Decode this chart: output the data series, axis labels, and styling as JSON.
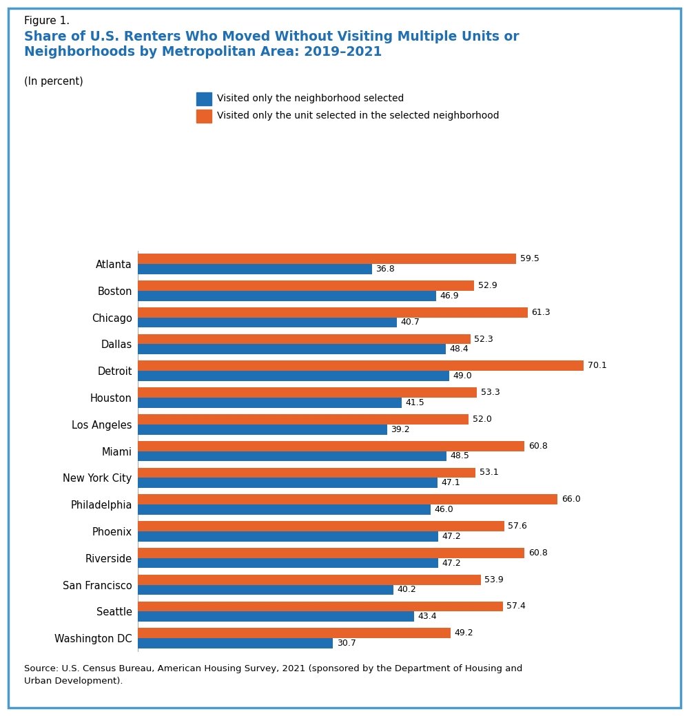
{
  "figure_label": "Figure 1.",
  "title": "Share of U.S. Renters Who Moved Without Visiting Multiple Units or\nNeighborhoods by Metropolitan Area: 2019–2021",
  "subtitle": "(In percent)",
  "source": "Source: U.S. Census Bureau, American Housing Survey, 2021 (sponsored by the Department of Housing and\nUrban Development).",
  "legend": [
    "Visited only the neighborhood selected",
    "Visited only the unit selected in the selected neighborhood"
  ],
  "categories": [
    "Atlanta",
    "Boston",
    "Chicago",
    "Dallas",
    "Detroit",
    "Houston",
    "Los Angeles",
    "Miami",
    "New York City",
    "Philadelphia",
    "Phoenix",
    "Riverside",
    "San Francisco",
    "Seattle",
    "Washington DC"
  ],
  "blue_values": [
    36.8,
    46.9,
    40.7,
    48.4,
    49.0,
    41.5,
    39.2,
    48.5,
    47.1,
    46.0,
    47.2,
    47.2,
    40.2,
    43.4,
    30.7
  ],
  "orange_values": [
    59.5,
    52.9,
    61.3,
    52.3,
    70.1,
    53.3,
    52.0,
    60.8,
    53.1,
    66.0,
    57.6,
    60.8,
    53.9,
    57.4,
    49.2
  ],
  "blue_color": "#1F6FB4",
  "orange_color": "#E8632A",
  "background_color": "#FFFFFF",
  "border_color": "#4A9BC9",
  "title_color": "#1F6FB4",
  "figure_label_color": "#000000",
  "bar_height": 0.38,
  "xlim": [
    0,
    78
  ]
}
